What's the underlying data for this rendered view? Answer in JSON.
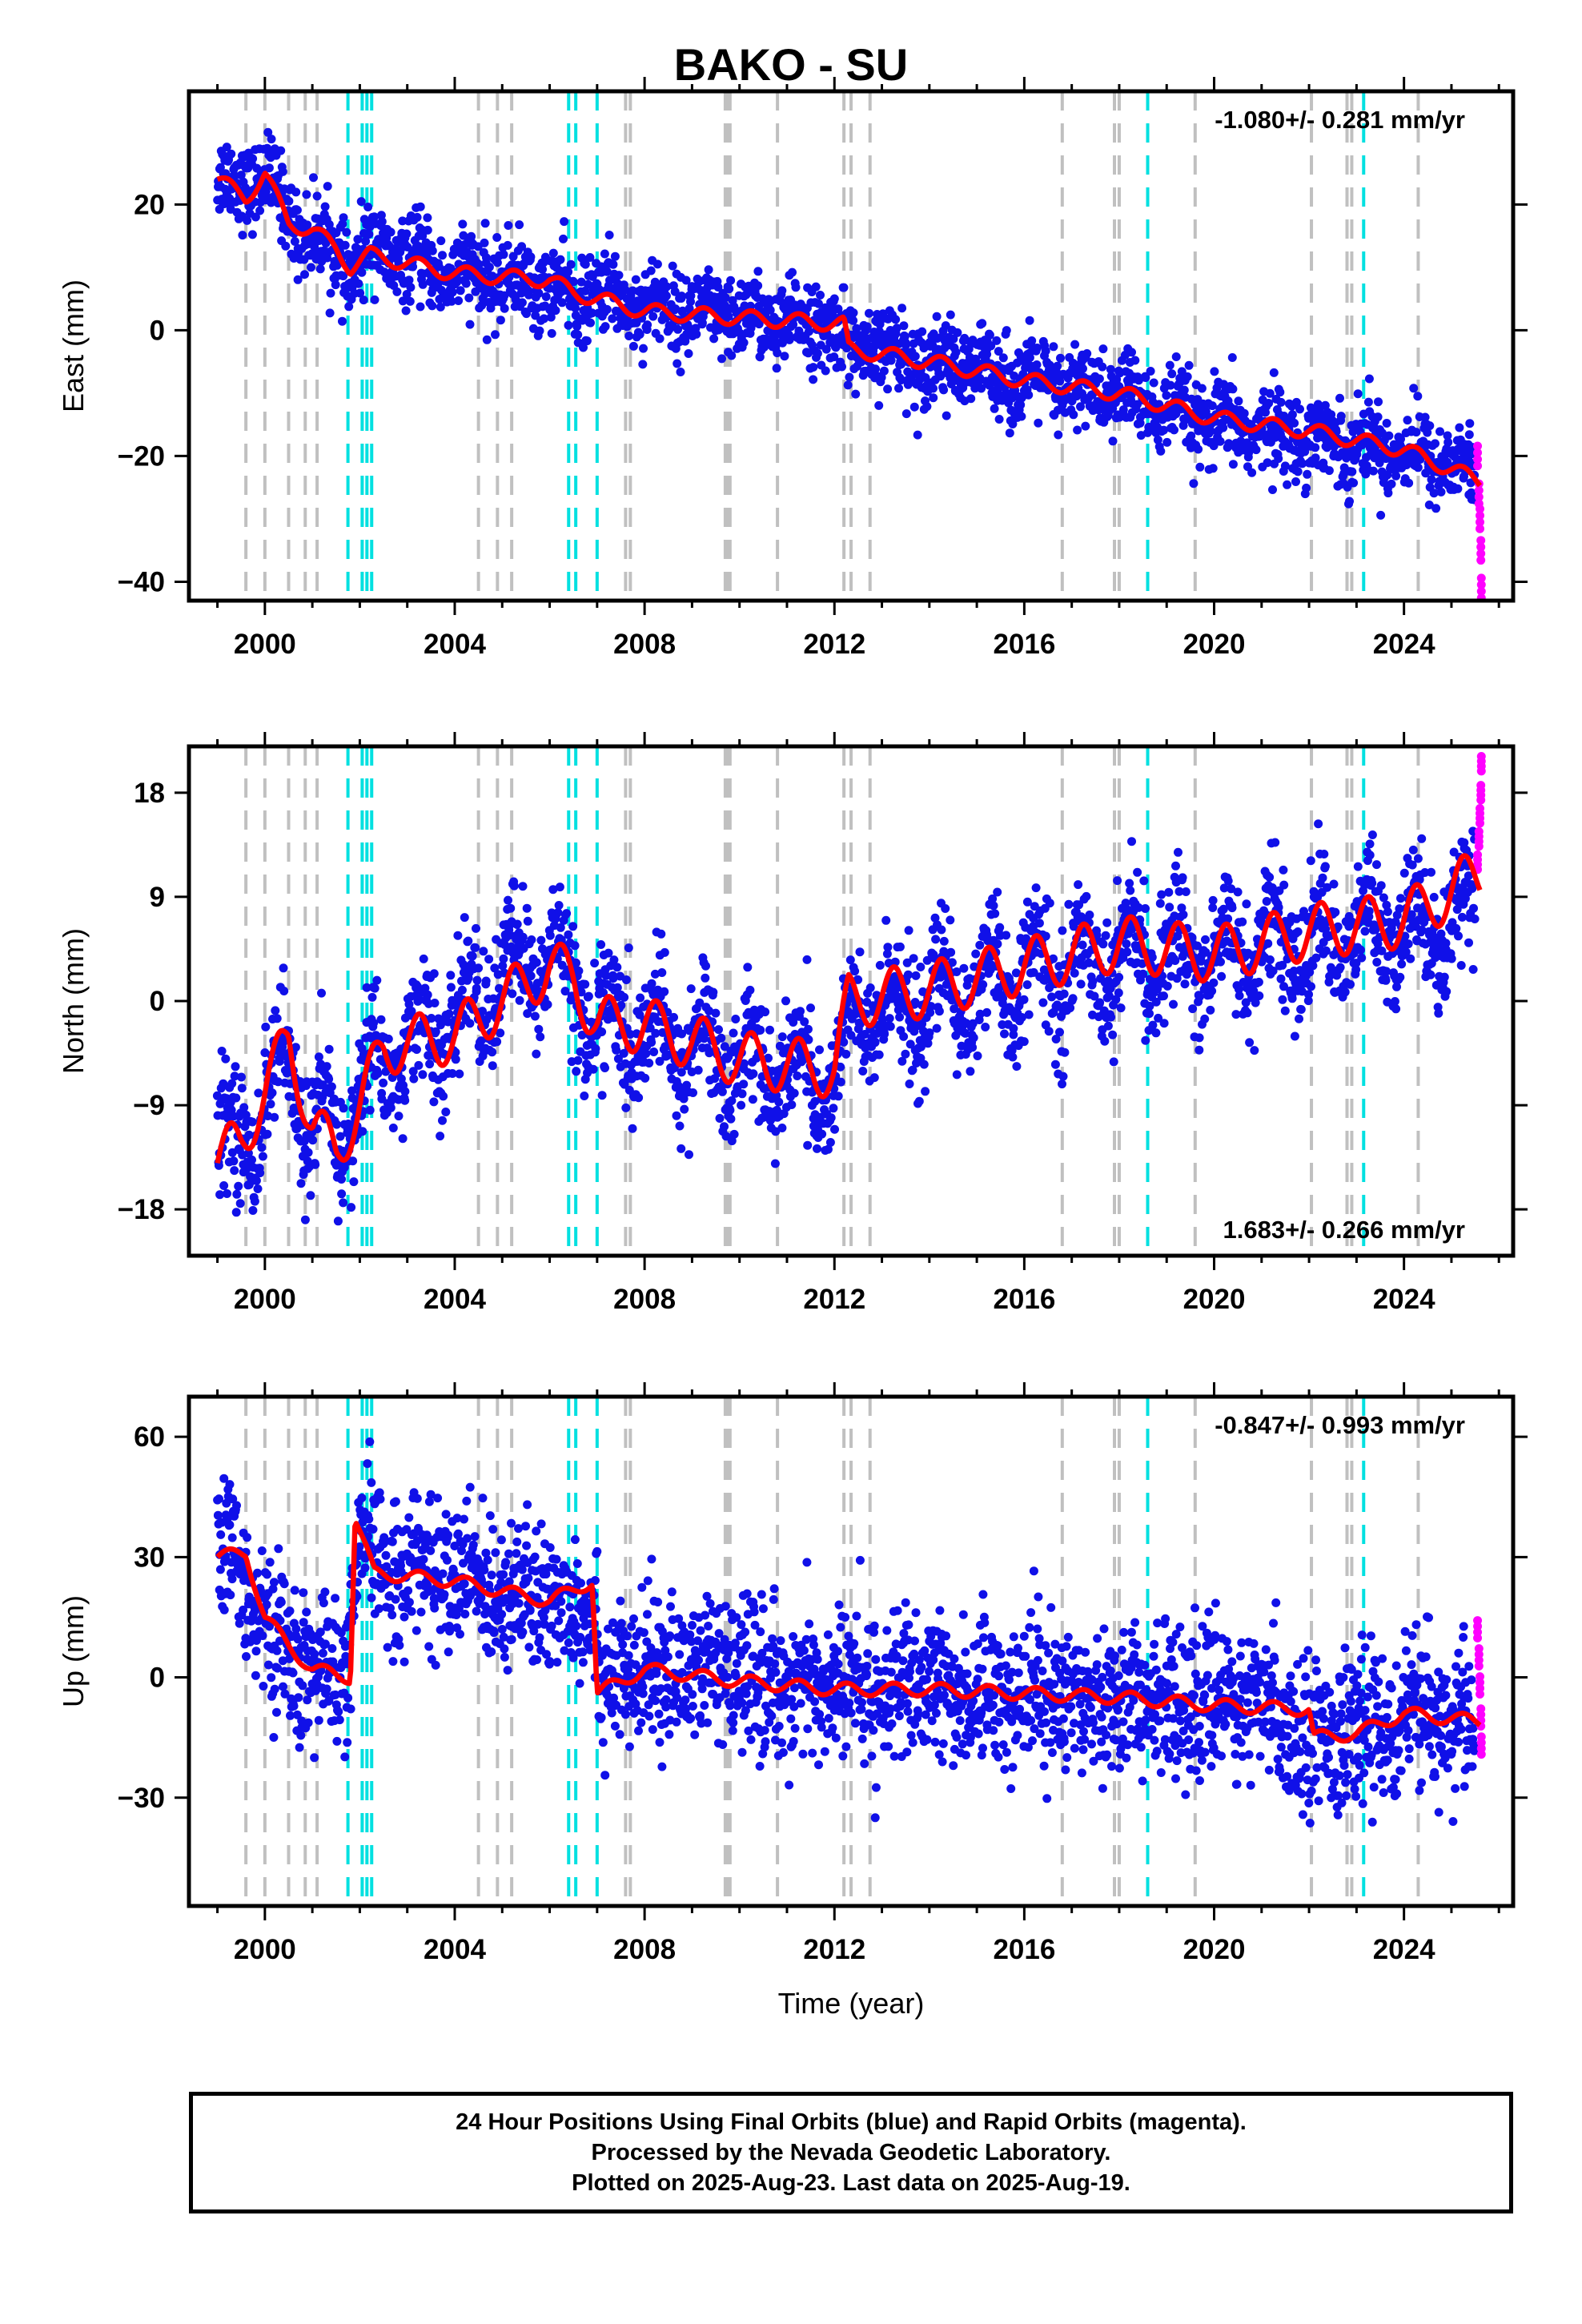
{
  "figure": {
    "title": "BAKO - SU",
    "xlabel": "Time (year)",
    "footer": {
      "line1": "24 Hour Positions Using Final Orbits (blue) and Rapid Orbits (magenta).",
      "line2": "Processed by the Nevada Geodetic Laboratory.",
      "line3": "Plotted on 2025-Aug-23. Last data on 2025-Aug-19."
    },
    "colors": {
      "final_orbits": "#1010e8",
      "rapid_orbits": "#ff00ff",
      "model": "#ff0000",
      "equipment_change": "#c0c0c0",
      "earthquake": "#00e0e0"
    }
  },
  "chart_data": [
    {
      "type": "scatter",
      "panel": "east",
      "ylabel": "East (mm)",
      "rate_label": "-1.080+/- 0.281 mm/yr",
      "rate_position": "top-right",
      "xlim": [
        1998.4,
        2026.3
      ],
      "ylim": [
        -43,
        38
      ],
      "xticks": [
        2000,
        2004,
        2008,
        2012,
        2016,
        2020,
        2024
      ],
      "yticks": [
        -40,
        -20,
        0,
        20
      ],
      "ytick_labels": [
        "−40",
        "−20",
        "0",
        "20"
      ],
      "grid": false,
      "series": [
        {
          "name": "Final Orbits",
          "color": "#1010e8",
          "x": [
            1999.0,
            1999.5,
            2000.0,
            2000.5,
            2001.0,
            2001.5,
            2001.8,
            2002.2,
            2003.0,
            2004.0,
            2005.0,
            2006.0,
            2006.5,
            2007.0,
            2008.0,
            2009.0,
            2010.0,
            2011.0,
            2012.0,
            2012.3,
            2013.0,
            2014.0,
            2015.0,
            2016.0,
            2017.0,
            2018.0,
            2019.0,
            2020.0,
            2021.0,
            2022.0,
            2023.0,
            2024.0,
            2025.0,
            2025.5
          ],
          "y": [
            24,
            23,
            25,
            18,
            15,
            12,
            9,
            13,
            11,
            9,
            8,
            7,
            5,
            6,
            4,
            3,
            2,
            1,
            1,
            -3,
            -3,
            -5,
            -6,
            -8,
            -9,
            -10,
            -13,
            -15,
            -16,
            -17,
            -18,
            -19,
            -21,
            -23
          ]
        },
        {
          "name": "Rapid Orbits",
          "color": "#ff00ff",
          "x": [
            2025.55,
            2025.58,
            2025.6,
            2025.62,
            2025.63
          ],
          "y": [
            -20,
            -26,
            -30,
            -35,
            -41
          ]
        },
        {
          "name": "Model",
          "color": "#ff0000",
          "x": [
            1999.0,
            1999.6,
            2000.0,
            2000.5,
            2001.0,
            2001.5,
            2001.8,
            2002.2,
            2004.0,
            2006.0,
            2006.5,
            2008.0,
            2010.0,
            2012.2,
            2012.3,
            2014.0,
            2016.0,
            2018.0,
            2020.0,
            2022.0,
            2024.0,
            2025.6
          ],
          "y": [
            24,
            21,
            25,
            17,
            16,
            13,
            10,
            12,
            9,
            8,
            6,
            3,
            2,
            1,
            -3,
            -5,
            -8,
            -10,
            -14,
            -16,
            -19,
            -24
          ]
        }
      ],
      "event_lines": {
        "equipment_change": [
          1999.6,
          2000.0,
          2000.5,
          2000.85,
          2001.1,
          2004.5,
          2004.9,
          2005.2,
          2007.6,
          2007.7,
          2009.7,
          2009.75,
          2009.8,
          2010.8,
          2012.2,
          2012.35,
          2012.75,
          2016.8,
          2017.9,
          2018.0,
          2019.6,
          2022.05,
          2022.8,
          2022.9,
          2024.3
        ],
        "earthquake": [
          2001.75,
          2002.05,
          2002.15,
          2002.25,
          2006.4,
          2006.55,
          2007.0,
          2018.6,
          2023.15
        ]
      }
    },
    {
      "type": "scatter",
      "panel": "north",
      "ylabel": "North (mm)",
      "rate_label": "1.683+/- 0.266 mm/yr",
      "rate_position": "bottom-right",
      "xlim": [
        1998.4,
        2026.3
      ],
      "ylim": [
        -22,
        22
      ],
      "xticks": [
        2000,
        2004,
        2008,
        2012,
        2016,
        2020,
        2024
      ],
      "yticks": [
        -18,
        -9,
        0,
        9,
        18
      ],
      "ytick_labels": [
        "−18",
        "−9",
        "0",
        "9",
        "18"
      ],
      "grid": false,
      "series": [
        {
          "name": "Final Orbits",
          "color": "#1010e8",
          "x": [
            1999.0,
            1999.5,
            2000.0,
            2000.5,
            2001.0,
            2001.5,
            2002.0,
            2002.5,
            2003.0,
            2004.0,
            2005.0,
            2006.0,
            2006.5,
            2007.0,
            2008.0,
            2009.0,
            2010.0,
            2011.0,
            2012.0,
            2012.5,
            2013.0,
            2014.0,
            2015.0,
            2016.0,
            2017.0,
            2018.0,
            2019.0,
            2020.0,
            2021.0,
            2022.0,
            2023.0,
            2024.0,
            2025.0,
            2025.5
          ],
          "y": [
            -13,
            -12,
            -9,
            -5,
            -11,
            -12,
            -8,
            -5,
            -4,
            -2,
            2,
            4,
            2,
            -2,
            -3,
            -4,
            -5,
            -6,
            -7,
            -1,
            -1,
            0,
            1,
            2,
            3,
            4,
            4,
            4,
            5,
            5,
            6,
            6,
            7,
            9
          ]
        },
        {
          "name": "Rapid Orbits",
          "color": "#ff00ff",
          "x": [
            2025.55,
            2025.58,
            2025.6,
            2025.62,
            2025.63
          ],
          "y": [
            12,
            14,
            16,
            18,
            20.5
          ]
        },
        {
          "name": "Model",
          "color": "#ff0000",
          "x": [
            1999.0,
            1999.5,
            2000.0,
            2000.5,
            2001.0,
            2001.5,
            2002.0,
            2002.5,
            2004.0,
            2005.0,
            2006.0,
            2006.5,
            2007.0,
            2008.0,
            2010.0,
            2012.0,
            2012.3,
            2014.0,
            2016.0,
            2018.0,
            2020.0,
            2022.0,
            2024.0,
            2025.6
          ],
          "y": [
            -14,
            -12,
            -8,
            -3,
            -11,
            -13,
            -9,
            -4,
            -3,
            0,
            3,
            2,
            -2,
            -2,
            -5,
            -6,
            0,
            1,
            3,
            5,
            4,
            6,
            7,
            11
          ]
        }
      ],
      "event_lines": {
        "equipment_change": [
          1999.6,
          2000.0,
          2000.5,
          2000.85,
          2001.1,
          2004.5,
          2004.9,
          2005.2,
          2007.6,
          2007.7,
          2009.7,
          2009.75,
          2009.8,
          2010.8,
          2012.2,
          2012.35,
          2012.75,
          2016.8,
          2017.9,
          2018.0,
          2019.6,
          2022.05,
          2022.8,
          2022.9,
          2024.3
        ],
        "earthquake": [
          2001.75,
          2002.05,
          2002.15,
          2002.25,
          2006.4,
          2006.55,
          2007.0,
          2018.6,
          2023.15
        ]
      }
    },
    {
      "type": "scatter",
      "panel": "up",
      "ylabel": "Up (mm)",
      "rate_label": "-0.847+/- 0.993 mm/yr",
      "rate_position": "top-right",
      "xlim": [
        1998.4,
        2026.3
      ],
      "ylim": [
        -57,
        70
      ],
      "xticks": [
        2000,
        2004,
        2008,
        2012,
        2016,
        2020,
        2024
      ],
      "yticks": [
        -30,
        0,
        30,
        60
      ],
      "ytick_labels": [
        "−30",
        "0",
        "30",
        "60"
      ],
      "grid": false,
      "series": [
        {
          "name": "Final Orbits",
          "color": "#1010e8",
          "x": [
            1999.0,
            1999.5,
            2000.0,
            2000.5,
            2001.0,
            2001.5,
            2001.8,
            2002.0,
            2002.5,
            2003.0,
            2004.0,
            2005.0,
            2006.0,
            2006.9,
            2007.1,
            2008.0,
            2009.0,
            2010.0,
            2011.0,
            2012.0,
            2013.0,
            2014.0,
            2015.0,
            2016.0,
            2017.0,
            2018.0,
            2019.0,
            2020.0,
            2021.0,
            2022.0,
            2022.5,
            2023.0,
            2024.0,
            2025.0,
            2025.5
          ],
          "y": [
            30,
            28,
            12,
            5,
            2,
            0,
            5,
            35,
            27,
            28,
            25,
            22,
            18,
            20,
            -2,
            1,
            2,
            1,
            -2,
            -2,
            -3,
            -3,
            -4,
            -4,
            -4,
            -5,
            -6,
            -6,
            -7,
            -14,
            -14,
            -14,
            -10,
            -10,
            -12
          ]
        },
        {
          "name": "Rapid Orbits",
          "color": "#ff00ff",
          "x": [
            2025.55,
            2025.58,
            2025.6,
            2025.62,
            2025.63
          ],
          "y": [
            12,
            5,
            -2,
            -10,
            -17
          ]
        },
        {
          "name": "Model",
          "color": "#ff0000",
          "x": [
            1999.0,
            1999.6,
            2000.0,
            2000.5,
            2001.0,
            2001.8,
            2001.9,
            2002.3,
            2004.0,
            2006.0,
            2006.9,
            2007.0,
            2008.0,
            2010.0,
            2012.0,
            2014.0,
            2016.0,
            2018.0,
            2020.0,
            2022.0,
            2022.1,
            2023.0,
            2024.0,
            2025.6
          ],
          "y": [
            30,
            31,
            15,
            8,
            2,
            0,
            40,
            26,
            24,
            19,
            24,
            -4,
            2,
            -1,
            -3,
            -3,
            -4,
            -5,
            -7,
            -8,
            -15,
            -14,
            -9,
            -11
          ]
        }
      ],
      "event_lines": {
        "equipment_change": [
          1999.6,
          2000.0,
          2000.5,
          2000.85,
          2001.1,
          2004.5,
          2004.9,
          2005.2,
          2007.6,
          2007.7,
          2009.7,
          2009.75,
          2009.8,
          2010.8,
          2012.2,
          2012.35,
          2012.75,
          2016.8,
          2017.9,
          2018.0,
          2019.6,
          2022.05,
          2022.8,
          2022.9,
          2024.3
        ],
        "earthquake": [
          2001.75,
          2002.05,
          2002.15,
          2002.25,
          2006.4,
          2006.55,
          2007.0,
          2018.6,
          2023.15
        ]
      }
    }
  ]
}
